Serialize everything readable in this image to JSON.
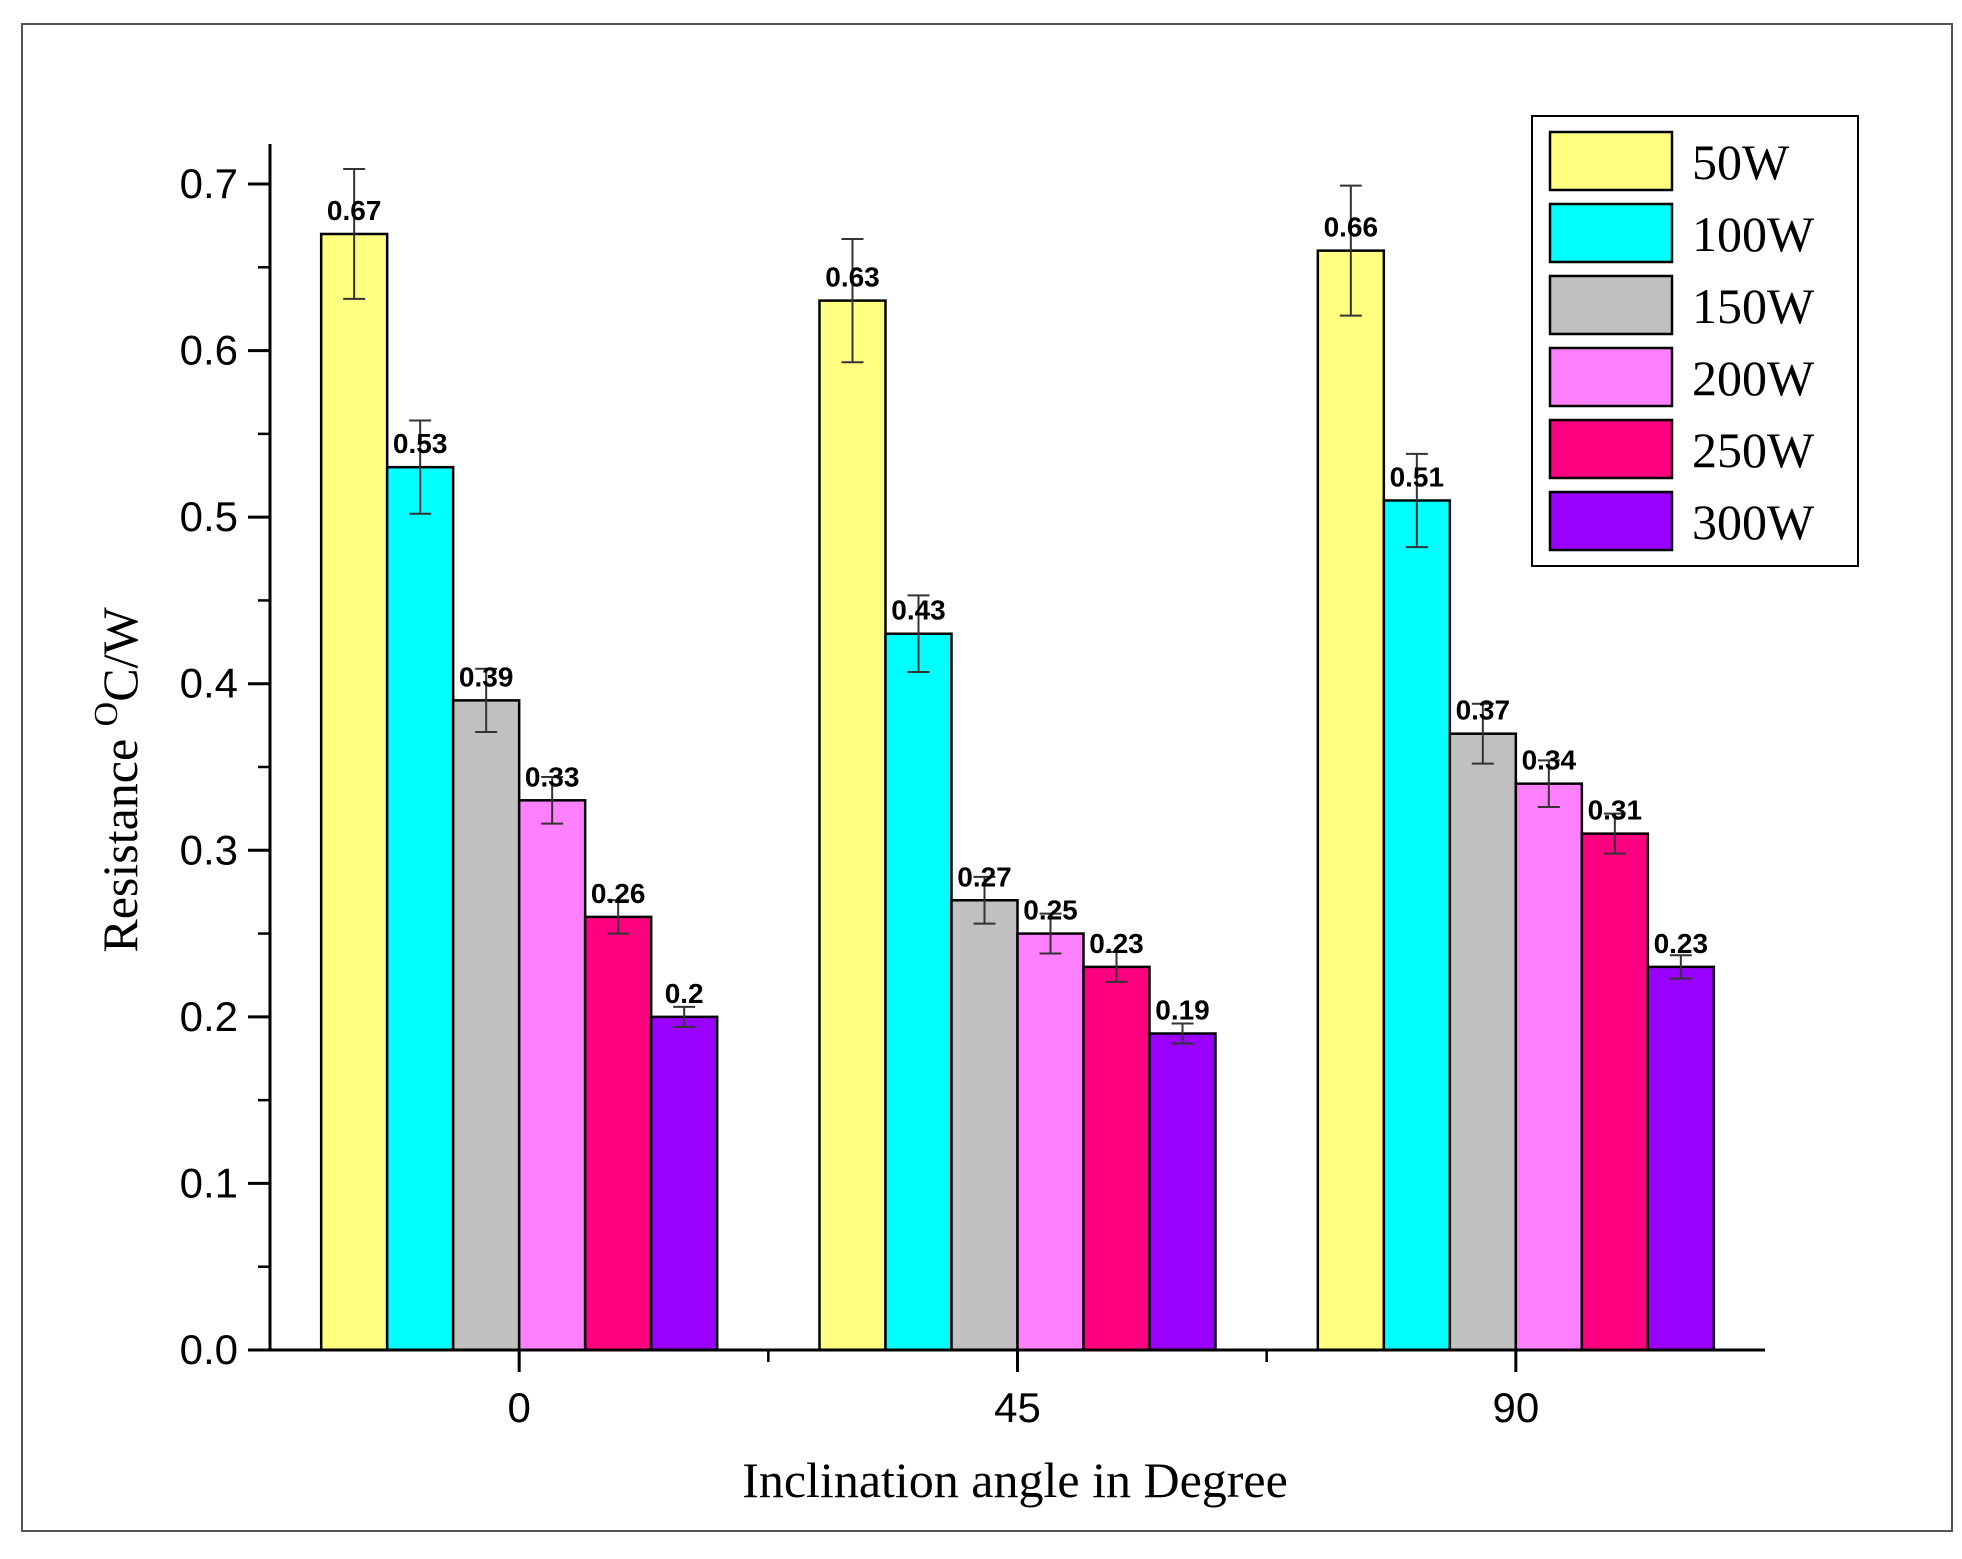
{
  "chart_data": {
    "type": "bar",
    "title": "",
    "xlabel": "Inclination angle in Degree",
    "ylabel_prefix": "Resistance ",
    "ylabel_sup": "O",
    "ylabel_suffix": "C/W",
    "categories": [
      "0",
      "45",
      "90"
    ],
    "ylim": [
      0.0,
      0.7
    ],
    "yticks": [
      "0.0",
      "0.1",
      "0.2",
      "0.3",
      "0.4",
      "0.5",
      "0.6",
      "0.7"
    ],
    "ytick_values": [
      0.0,
      0.1,
      0.2,
      0.3,
      0.4,
      0.5,
      0.6,
      0.7
    ],
    "grid": false,
    "legend_position": "top-right",
    "series": [
      {
        "name": "50W",
        "color": "#ffff80",
        "values": [
          0.67,
          0.63,
          0.66
        ],
        "labels": [
          "0.67",
          "0.63",
          "0.66"
        ],
        "errors": [
          0.039,
          0.037,
          0.039
        ]
      },
      {
        "name": "100W",
        "color": "#00ffff",
        "values": [
          0.53,
          0.43,
          0.51
        ],
        "labels": [
          "0.53",
          "0.43",
          "0.51"
        ],
        "errors": [
          0.028,
          0.023,
          0.028
        ]
      },
      {
        "name": "150W",
        "color": "#c0c0c0",
        "values": [
          0.39,
          0.27,
          0.37
        ],
        "labels": [
          "0.39",
          "0.27",
          "0.37"
        ],
        "errors": [
          0.019,
          0.014,
          0.018
        ]
      },
      {
        "name": "200W",
        "color": "#ff80ff",
        "values": [
          0.33,
          0.25,
          0.34
        ],
        "labels": [
          "0.33",
          "0.25",
          "0.34"
        ],
        "errors": [
          0.014,
          0.012,
          0.014
        ]
      },
      {
        "name": "250W",
        "color": "#ff0080",
        "values": [
          0.26,
          0.23,
          0.31
        ],
        "labels": [
          "0.26",
          "0.23",
          "0.31"
        ],
        "errors": [
          0.01,
          0.009,
          0.012
        ]
      },
      {
        "name": "300W",
        "color": "#9900ff",
        "values": [
          0.2,
          0.19,
          0.23
        ],
        "labels": [
          "0.2",
          "0.19",
          "0.23"
        ],
        "errors": [
          0.006,
          0.006,
          0.007
        ]
      }
    ]
  }
}
